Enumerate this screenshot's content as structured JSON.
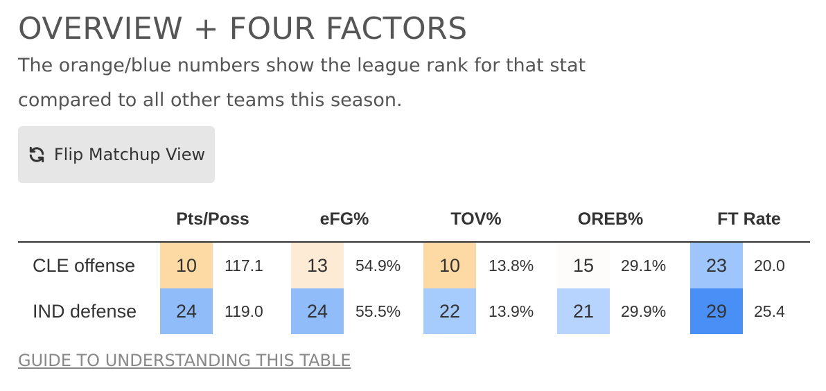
{
  "header": {
    "title": "OVERVIEW + FOUR FACTORS",
    "subtitle": "The orange/blue numbers show the league rank for that stat compared to all other teams this season."
  },
  "flip_button": {
    "icon": "refresh-icon",
    "label": "Flip Matchup View"
  },
  "table": {
    "columns": [
      "Pts/Poss",
      "eFG%",
      "TOV%",
      "OREB%",
      "FT Rate"
    ],
    "rows": [
      {
        "label": "CLE offense",
        "cells": [
          {
            "rank": "10",
            "value": "117.1",
            "color": "#fdd9a3"
          },
          {
            "rank": "13",
            "value": "54.9%",
            "color": "#fdebd6"
          },
          {
            "rank": "10",
            "value": "13.8%",
            "color": "#fdd9a3"
          },
          {
            "rank": "15",
            "value": "29.1%",
            "color": "#fdfcfa"
          },
          {
            "rank": "23",
            "value": "20.0",
            "color": "#9ec5fc"
          }
        ]
      },
      {
        "label": "IND defense",
        "cells": [
          {
            "rank": "24",
            "value": "119.0",
            "color": "#90bcfa"
          },
          {
            "rank": "24",
            "value": "55.5%",
            "color": "#90bcfa"
          },
          {
            "rank": "22",
            "value": "13.9%",
            "color": "#a6cbfd"
          },
          {
            "rank": "21",
            "value": "29.9%",
            "color": "#b6d4fd"
          },
          {
            "rank": "29",
            "value": "25.4",
            "color": "#4a8ff5"
          }
        ]
      }
    ]
  },
  "guide_link": "GUIDE TO UNDERSTANDING THIS TABLE"
}
